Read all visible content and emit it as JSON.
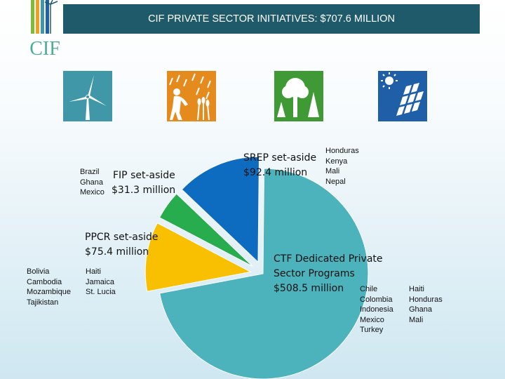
{
  "title": "CIF PRIVATE SECTOR INITIATIVES: $707.6 MILLION",
  "logo": {
    "text": "CIF"
  },
  "icons": [
    "wind-turbine-icon",
    "farmer-icon",
    "trees-icon",
    "solar-panel-icon"
  ],
  "colors": {
    "title_bar": "#1f5a6b",
    "wind_tile": "#3f97a7",
    "farmer_tile": "#e58b1e",
    "trees_tile": "#3f9a35",
    "solar_tile": "#1f5fa8",
    "ctf": "#4cb2bc",
    "ppcr": "#f8c000",
    "fip": "#27ad4e",
    "srep": "#0d6cc0"
  },
  "chart_data": {
    "type": "pie",
    "title": "CIF PRIVATE SECTOR INITIATIVES: $707.6 MILLION",
    "units": "$ million",
    "slices": [
      {
        "name": "CTF Dedicated Private Sector Programs",
        "value": 508.5,
        "color": "#4cb2bc",
        "exploded": false
      },
      {
        "name": "PPCR set-aside",
        "value": 75.4,
        "color": "#f8c000",
        "exploded": true
      },
      {
        "name": "FIP set-aside",
        "value": 31.3,
        "color": "#27ad4e",
        "exploded": true
      },
      {
        "name": "SREP set-aside",
        "value": 92.4,
        "color": "#0d6cc0",
        "exploded": true
      }
    ],
    "labels": {
      "ctf": {
        "line1": "CTF Dedicated Private",
        "line2": "Sector Programs",
        "line3": "$508.5 million"
      },
      "ppcr": {
        "line1": "PPCR set-aside",
        "line2": "$75.4 million"
      },
      "fip": {
        "line1": "FIP set-aside",
        "line2": "$31.3 million"
      },
      "srep": {
        "line1": "SREP set-aside",
        "line2": "$92.4 million"
      }
    },
    "countries": {
      "ctf_col1": [
        "Chile",
        "Colombia",
        "Indonesia",
        "Mexico",
        "Turkey"
      ],
      "ctf_col2": [
        "Haiti",
        "Honduras",
        "Ghana",
        "Mali"
      ],
      "ppcr_col1": [
        "Bolivia",
        "Cambodia",
        "Mozambique",
        "Tajikistan"
      ],
      "ppcr_col2": [
        "Haiti",
        "Jamaica",
        "St. Lucia"
      ],
      "fip": [
        "Brazil",
        "Ghana",
        "Mexico"
      ],
      "srep": [
        "Honduras",
        "Kenya",
        "Mali",
        "Nepal"
      ]
    }
  }
}
